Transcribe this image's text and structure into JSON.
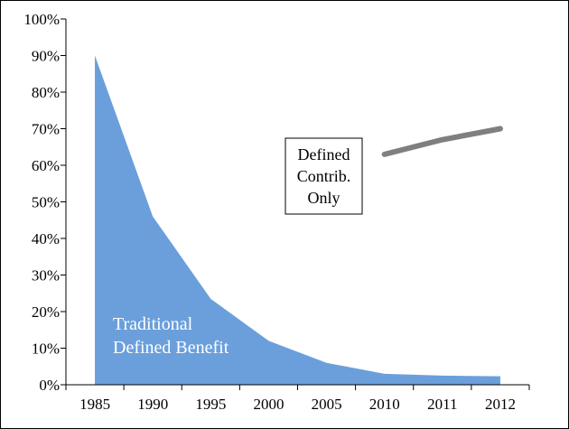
{
  "chart_data": {
    "type": "area",
    "title": "",
    "xlabel": "",
    "ylabel": "",
    "ylim": [
      0,
      100
    ],
    "y_ticks": [
      "0%",
      "10%",
      "20%",
      "30%",
      "40%",
      "50%",
      "60%",
      "70%",
      "80%",
      "90%",
      "100%"
    ],
    "categories": [
      "1985",
      "1990",
      "1995",
      "2000",
      "2005",
      "2010",
      "2011",
      "2012"
    ],
    "grid": false,
    "legend": "none",
    "series": [
      {
        "name": "Traditional Defined Benefit",
        "kind": "area",
        "color": "#6a9fdb",
        "values": [
          90,
          46,
          23.5,
          12,
          6,
          3,
          2.5,
          2.3
        ],
        "label_lines": [
          "Traditional",
          "Defined Benefit"
        ]
      },
      {
        "name": "Defined Contrib. Only",
        "kind": "line",
        "color": "#7f7f7f",
        "values": [
          null,
          null,
          null,
          null,
          null,
          63,
          67,
          70
        ],
        "label_lines": [
          "Defined",
          "Contrib.",
          "Only"
        ]
      }
    ]
  }
}
